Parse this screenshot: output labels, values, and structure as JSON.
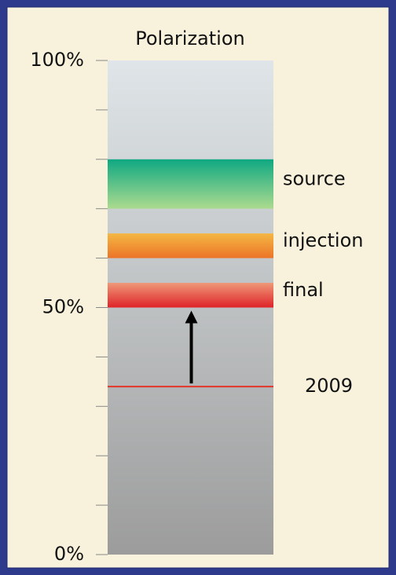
{
  "chart_data": {
    "type": "range",
    "title": "Polarization",
    "ylim": [
      0,
      100
    ],
    "yticks": [
      {
        "value": 0,
        "label": "0%"
      },
      {
        "value": 50,
        "label": "50%"
      },
      {
        "value": 100,
        "label": "100%"
      }
    ],
    "yminor_ticks": [
      10,
      20,
      30,
      40,
      60,
      70,
      80,
      90
    ],
    "column_colors": [
      "#dfe5e8",
      "#9c9c9c"
    ],
    "bands": [
      {
        "name": "source",
        "low": 70,
        "high": 80,
        "colors": [
          "#0fa882",
          "#acdb8f"
        ]
      },
      {
        "name": "injection",
        "low": 60,
        "high": 65,
        "colors": [
          "#f4b743",
          "#ec7428"
        ]
      },
      {
        "name": "final",
        "low": 50,
        "high": 55,
        "colors": [
          "#ef9877",
          "#df2329"
        ]
      }
    ],
    "line": {
      "name": "2009",
      "value": 34,
      "color": "#e4372a"
    }
  }
}
